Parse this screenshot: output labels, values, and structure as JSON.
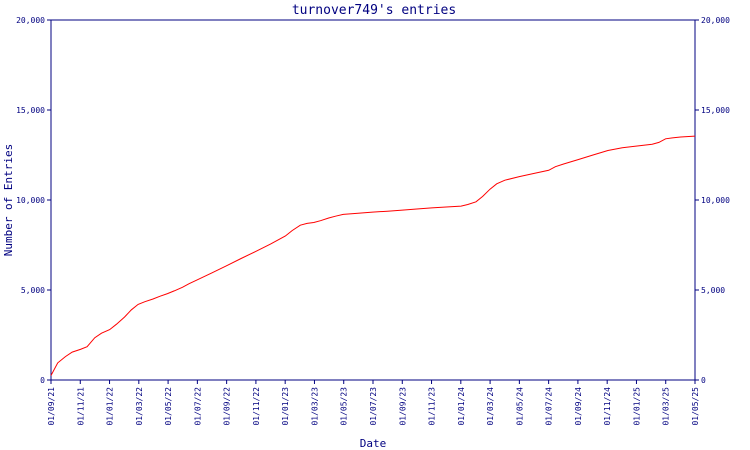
{
  "chart_data": {
    "type": "line",
    "title": "turnover749's entries",
    "xlabel": "Date",
    "ylabel": "Number of Entries",
    "ylim": [
      0,
      20000
    ],
    "y_ticks": [
      0,
      5000,
      10000,
      15000,
      20000
    ],
    "y_tick_labels": [
      "0",
      "5,000",
      "10,000",
      "15,000",
      "20,000"
    ],
    "x_tick_labels": [
      "01/09/21",
      "01/11/21",
      "01/01/22",
      "01/03/22",
      "01/05/22",
      "01/07/22",
      "01/09/22",
      "01/11/22",
      "01/01/23",
      "01/03/23",
      "01/05/23",
      "01/07/23",
      "01/09/23",
      "01/11/23",
      "01/01/24",
      "01/03/24",
      "01/05/24",
      "01/07/24",
      "01/09/24",
      "01/11/24",
      "01/01/25",
      "01/03/25",
      "01/05/25"
    ],
    "line_color": "#ff0000",
    "axis_color": "#000080",
    "series": [
      {
        "x": [
          "2021-09-01",
          "2021-09-15",
          "2021-10-01",
          "2021-10-15",
          "2021-11-01",
          "2021-11-15",
          "2021-12-01",
          "2021-12-15",
          "2022-01-01",
          "2022-01-15",
          "2022-02-01",
          "2022-02-15",
          "2022-03-01",
          "2022-03-15",
          "2022-04-01",
          "2022-04-15",
          "2022-05-01",
          "2022-05-15",
          "2022-06-01",
          "2022-06-15",
          "2022-07-01",
          "2022-08-01",
          "2022-09-01",
          "2022-10-01",
          "2022-11-01",
          "2022-12-01",
          "2023-01-01",
          "2023-01-15",
          "2023-02-01",
          "2023-02-15",
          "2023-03-01",
          "2023-03-15",
          "2023-04-01",
          "2023-04-15",
          "2023-05-01",
          "2023-05-15",
          "2023-06-01",
          "2023-07-01",
          "2023-08-01",
          "2023-09-01",
          "2023-10-01",
          "2023-11-01",
          "2023-12-01",
          "2024-01-01",
          "2024-01-15",
          "2024-02-01",
          "2024-02-15",
          "2024-03-01",
          "2024-03-15",
          "2024-04-01",
          "2024-05-01",
          "2024-06-01",
          "2024-07-01",
          "2024-07-15",
          "2024-08-01",
          "2024-09-01",
          "2024-10-01",
          "2024-11-01",
          "2024-12-01",
          "2025-01-01",
          "2025-02-01",
          "2025-02-15",
          "2025-03-01",
          "2025-03-15",
          "2025-04-01",
          "2025-05-01"
        ],
        "y": [
          250,
          950,
          1300,
          1550,
          1700,
          1850,
          2350,
          2600,
          2800,
          3100,
          3500,
          3900,
          4200,
          4350,
          4500,
          4650,
          4800,
          4950,
          5150,
          5350,
          5550,
          5950,
          6350,
          6750,
          7150,
          7550,
          8000,
          8300,
          8600,
          8700,
          8750,
          8850,
          9000,
          9100,
          9200,
          9230,
          9260,
          9330,
          9380,
          9440,
          9500,
          9560,
          9610,
          9660,
          9750,
          9900,
          10200,
          10600,
          10900,
          11100,
          11300,
          11480,
          11650,
          11850,
          12000,
          12250,
          12500,
          12750,
          12900,
          13000,
          13100,
          13200,
          13400,
          13450,
          13500,
          13550
        ]
      }
    ]
  }
}
